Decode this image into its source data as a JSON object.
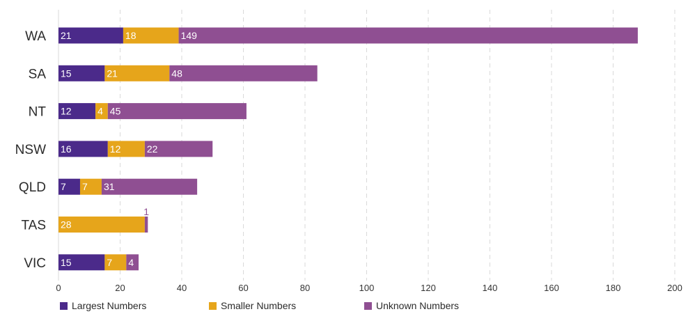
{
  "chart_data": {
    "type": "bar",
    "orientation": "horizontal",
    "stacked": true,
    "categories": [
      "WA",
      "SA",
      "NT",
      "NSW",
      "QLD",
      "TAS",
      "VIC"
    ],
    "series": [
      {
        "name": "Largest Numbers",
        "color": "#4b2a8a",
        "values": [
          21,
          15,
          12,
          16,
          7,
          null,
          15
        ]
      },
      {
        "name": "Smaller Numbers",
        "color": "#e6a51b",
        "values": [
          18,
          21,
          4,
          12,
          7,
          28,
          7
        ]
      },
      {
        "name": "Unknown Numbers",
        "color": "#8f4f92",
        "values": [
          149,
          48,
          45,
          22,
          31,
          1,
          4
        ]
      }
    ],
    "xlim": [
      0,
      200
    ],
    "xticks": [
      0,
      20,
      40,
      60,
      80,
      100,
      120,
      140,
      160,
      180,
      200
    ],
    "title": "",
    "xlabel": "",
    "ylabel": "",
    "grid": "vertical dashed",
    "legend_position": "bottom"
  }
}
